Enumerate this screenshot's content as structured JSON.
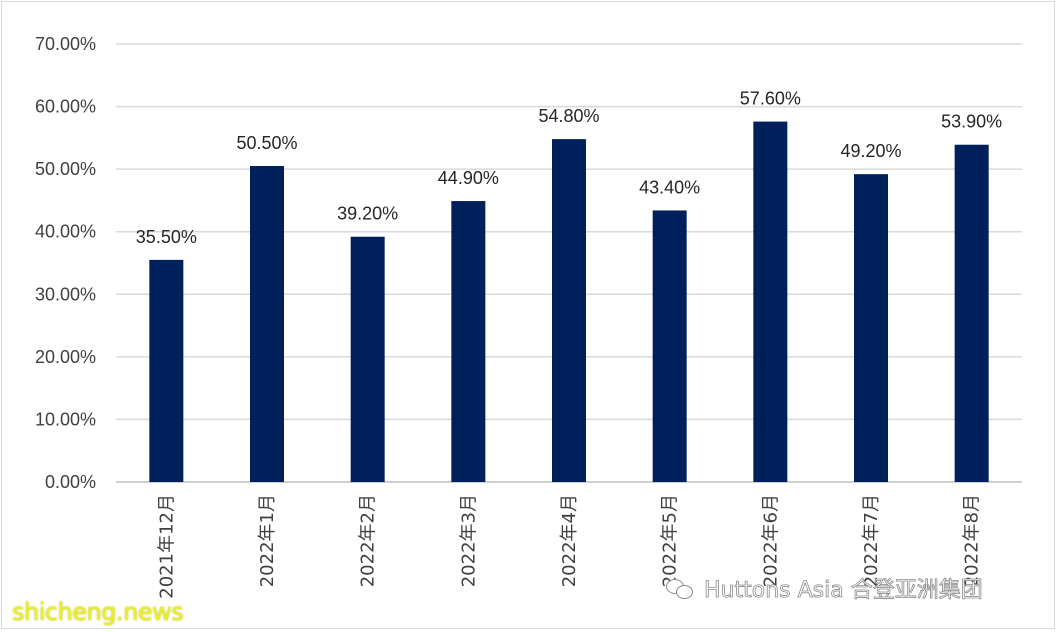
{
  "chart_data": {
    "type": "bar",
    "categories": [
      "2021年12月",
      "2022年1月",
      "2022年2月",
      "2022年3月",
      "2022年4月",
      "2022年5月",
      "2022年6月",
      "2022年7月",
      "2022年8月"
    ],
    "values": [
      35.5,
      50.5,
      39.2,
      44.9,
      54.8,
      43.4,
      57.6,
      49.2,
      53.9
    ],
    "data_labels": [
      "35.50%",
      "50.50%",
      "39.20%",
      "44.90%",
      "54.80%",
      "43.40%",
      "57.60%",
      "49.20%",
      "53.90%"
    ],
    "y_ticks": [
      "0.00%",
      "10.00%",
      "20.00%",
      "30.00%",
      "40.00%",
      "50.00%",
      "60.00%",
      "70.00%"
    ],
    "ylim": [
      0,
      70
    ],
    "grid": true,
    "legend": false,
    "bar_color": "#00205b"
  },
  "watermarks": {
    "site": "shicheng.news",
    "brand": "Huttons Asia 合登亚洲集团"
  }
}
